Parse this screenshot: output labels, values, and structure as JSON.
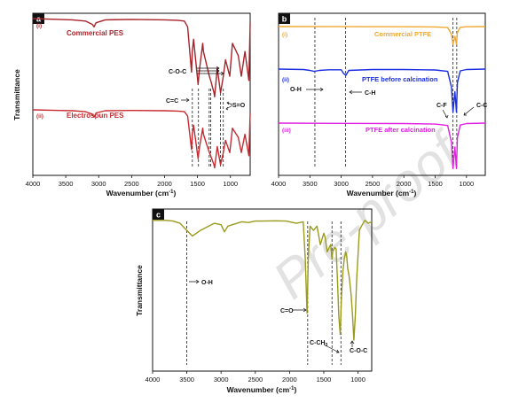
{
  "chart_data": [
    {
      "type": "line",
      "panel_label": "a",
      "xlabel": "Wavenumber (cm",
      "xlabel_sup": "-1",
      "xlabel_end": ")",
      "ylabel": "Transmittance",
      "xlim": [
        4000,
        700
      ],
      "xticks": [
        4000,
        3500,
        3000,
        2500,
        2000,
        1500,
        1000
      ],
      "xtick_labels": [
        "4000",
        "3500",
        "3000",
        "2500",
        "2000",
        "1500",
        "1000"
      ],
      "series": [
        {
          "name": "Commercial PES",
          "roman": "(i)",
          "color": "#a8222a",
          "x": [
            4000,
            3600,
            3400,
            3200,
            3098,
            3070,
            3040,
            2900,
            2500,
            2000,
            1800,
            1700,
            1650,
            1590,
            1578,
            1560,
            1490,
            1475,
            1420,
            1410,
            1320,
            1300,
            1250,
            1240,
            1200,
            1150,
            1108,
            1075,
            1010,
            970,
            880,
            835,
            780,
            720,
            700
          ],
          "y": [
            1.0,
            0.99,
            0.985,
            0.97,
            0.93,
            0.9,
            0.95,
            0.985,
            0.99,
            0.985,
            0.98,
            0.97,
            0.9,
            0.35,
            0.6,
            0.75,
            0.2,
            0.35,
            0.7,
            0.6,
            0.3,
            0.25,
            0.1,
            0.05,
            0.4,
            0.1,
            0.3,
            0.5,
            0.3,
            0.7,
            0.55,
            0.3,
            0.6,
            0.25,
            0.95
          ]
        },
        {
          "name": "Electrospun PES",
          "roman": "(ii)",
          "color": "#c72a30",
          "x": [
            4000,
            3600,
            3400,
            3200,
            3098,
            3070,
            3040,
            2900,
            2500,
            2000,
            1800,
            1700,
            1650,
            1590,
            1578,
            1560,
            1490,
            1475,
            1420,
            1410,
            1320,
            1300,
            1250,
            1240,
            1200,
            1150,
            1108,
            1075,
            1010,
            970,
            880,
            835,
            780,
            720,
            700
          ],
          "y": [
            1.0,
            0.99,
            0.985,
            0.97,
            0.93,
            0.88,
            0.95,
            0.985,
            0.99,
            0.985,
            0.98,
            0.97,
            0.9,
            0.35,
            0.6,
            0.75,
            0.2,
            0.35,
            0.7,
            0.6,
            0.3,
            0.25,
            0.1,
            0.05,
            0.4,
            0.1,
            0.3,
            0.5,
            0.3,
            0.7,
            0.55,
            0.3,
            0.6,
            0.25,
            0.95
          ]
        }
      ],
      "annotations": [
        "C-O-C",
        "C=C",
        "S=O"
      ],
      "dashed_lines_x": [
        1578,
        1485,
        1322,
        1298,
        1150,
        1108
      ]
    },
    {
      "type": "line",
      "panel_label": "b",
      "xlabel": "Wavenumber (cm",
      "xlabel_sup": "-1",
      "xlabel_end": ")",
      "xlim": [
        4000,
        700
      ],
      "xticks": [
        4000,
        3500,
        3000,
        2500,
        2000,
        1500,
        1000
      ],
      "xtick_labels": [
        "4000",
        "3500",
        "3000",
        "2500",
        "2000",
        "1500",
        "1000"
      ],
      "series": [
        {
          "name": "Commercial PTFE",
          "roman": "(i)",
          "color": "#f0a830",
          "x": [
            4000,
            3000,
            2000,
            1500,
            1300,
            1240,
            1215,
            1185,
            1160,
            1145,
            1100,
            1000,
            700
          ],
          "y": [
            1.0,
            0.995,
            0.99,
            0.98,
            0.95,
            0.6,
            0.1,
            0.5,
            0.1,
            0.7,
            0.96,
            0.99,
            1.0
          ]
        },
        {
          "name": "PTFE before calcination",
          "roman": "(ii)",
          "color": "#1a2ee0",
          "x": [
            4000,
            3600,
            3500,
            3430,
            3350,
            3200,
            3000,
            2960,
            2925,
            2880,
            2500,
            2000,
            1700,
            1500,
            1300,
            1240,
            1215,
            1185,
            1160,
            1145,
            1100,
            1000,
            700
          ],
          "y": [
            1.0,
            0.99,
            0.97,
            0.95,
            0.97,
            0.985,
            0.985,
            0.9,
            0.86,
            0.97,
            0.99,
            0.99,
            0.985,
            0.98,
            0.95,
            0.6,
            0.05,
            0.5,
            0.05,
            0.7,
            0.96,
            0.99,
            1.0
          ]
        },
        {
          "name": "PTFE after calcination",
          "roman": "(iii)",
          "color": "#e020e0",
          "x": [
            4000,
            3000,
            2000,
            1500,
            1300,
            1240,
            1215,
            1185,
            1160,
            1145,
            1100,
            1000,
            700
          ],
          "y": [
            1.0,
            0.995,
            0.99,
            0.98,
            0.95,
            0.6,
            0.05,
            0.5,
            0.05,
            0.7,
            0.96,
            0.99,
            1.0
          ]
        }
      ],
      "annotations": [
        "O-H",
        "C-H",
        "C-F",
        "C-C"
      ],
      "dashed_lines_x": [
        3420,
        2930,
        1215,
        1155
      ]
    },
    {
      "type": "line",
      "panel_label": "c",
      "xlabel": "Wavenumber (cm",
      "xlabel_sup": "-1",
      "xlabel_end": ")",
      "ylabel": "Transmittance",
      "xlim": [
        4000,
        800
      ],
      "xticks": [
        4000,
        3500,
        3000,
        2500,
        2000,
        1500,
        1000
      ],
      "xtick_labels": [
        "4000",
        "3500",
        "3000",
        "2500",
        "2000",
        "1500",
        "1000"
      ],
      "series": [
        {
          "name": "",
          "roman": "",
          "color": "#9a9a1c",
          "x": [
            4000,
            3800,
            3700,
            3600,
            3500,
            3420,
            3300,
            3100,
            3000,
            2950,
            2900,
            2700,
            2600,
            2500,
            2400,
            2200,
            2050,
            2000,
            1900,
            1800,
            1770,
            1745,
            1725,
            1700,
            1650,
            1600,
            1550,
            1500,
            1480,
            1450,
            1400,
            1380,
            1370,
            1340,
            1320,
            1300,
            1280,
            1260,
            1240,
            1220,
            1200,
            1180,
            1165,
            1150,
            1130,
            1100,
            1080,
            1060,
            1040,
            1020,
            1000,
            980,
            950,
            900,
            850,
            800
          ],
          "y": [
            0.97,
            0.97,
            0.965,
            0.95,
            0.9,
            0.86,
            0.9,
            0.95,
            0.94,
            0.89,
            0.93,
            0.96,
            0.955,
            0.965,
            0.965,
            0.967,
            0.965,
            0.96,
            0.95,
            0.96,
            0.7,
            0.32,
            0.72,
            0.93,
            0.9,
            0.93,
            0.8,
            0.88,
            0.85,
            0.75,
            0.8,
            0.7,
            0.75,
            0.78,
            0.77,
            0.55,
            0.3,
            0.17,
            0.45,
            0.62,
            0.7,
            0.75,
            0.72,
            0.63,
            0.58,
            0.45,
            0.3,
            0.13,
            0.3,
            0.55,
            0.73,
            0.9,
            0.93,
            0.97,
            0.95,
            0.96
          ]
        }
      ],
      "annotations": [
        "O-H",
        "C=O",
        "C-CH",
        "3",
        "C-O-C"
      ],
      "dashed_lines_x": [
        3500,
        1735,
        1380,
        1250
      ]
    }
  ]
}
